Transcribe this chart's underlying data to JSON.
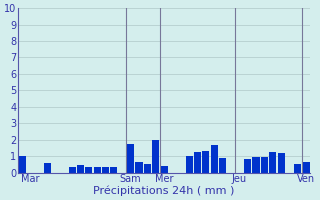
{
  "title": "",
  "xlabel": "Précipitations 24h ( mm )",
  "ylabel": "",
  "background_color": "#d4eeed",
  "bar_color": "#0033cc",
  "grid_color": "#b0c8c8",
  "grid_color_v": "#777799",
  "ylim": [
    0,
    10
  ],
  "yticks": [
    0,
    1,
    2,
    3,
    4,
    5,
    6,
    7,
    8,
    9,
    10
  ],
  "day_labels": [
    "Mar",
    "Sam",
    "Mer",
    "Jeu",
    "Ven"
  ],
  "day_tick_positions": [
    1,
    13,
    17,
    26,
    34
  ],
  "vline_positions": [
    12.5,
    16.5,
    25.5,
    33.5
  ],
  "values": [
    1.0,
    0.0,
    0.0,
    0.6,
    0.0,
    0.0,
    0.35,
    0.45,
    0.35,
    0.35,
    0.35,
    0.35,
    0.0,
    1.75,
    0.65,
    0.55,
    2.0,
    0.4,
    0.0,
    0.0,
    1.0,
    1.25,
    1.3,
    1.65,
    0.9,
    0.0,
    0.0,
    0.85,
    0.95,
    0.95,
    1.25,
    1.2,
    0.0,
    0.55,
    0.65
  ],
  "num_bars": 35,
  "xlabel_fontsize": 8,
  "tick_fontsize": 7,
  "day_label_fontsize": 7,
  "figsize": [
    3.2,
    2.0
  ],
  "dpi": 100
}
